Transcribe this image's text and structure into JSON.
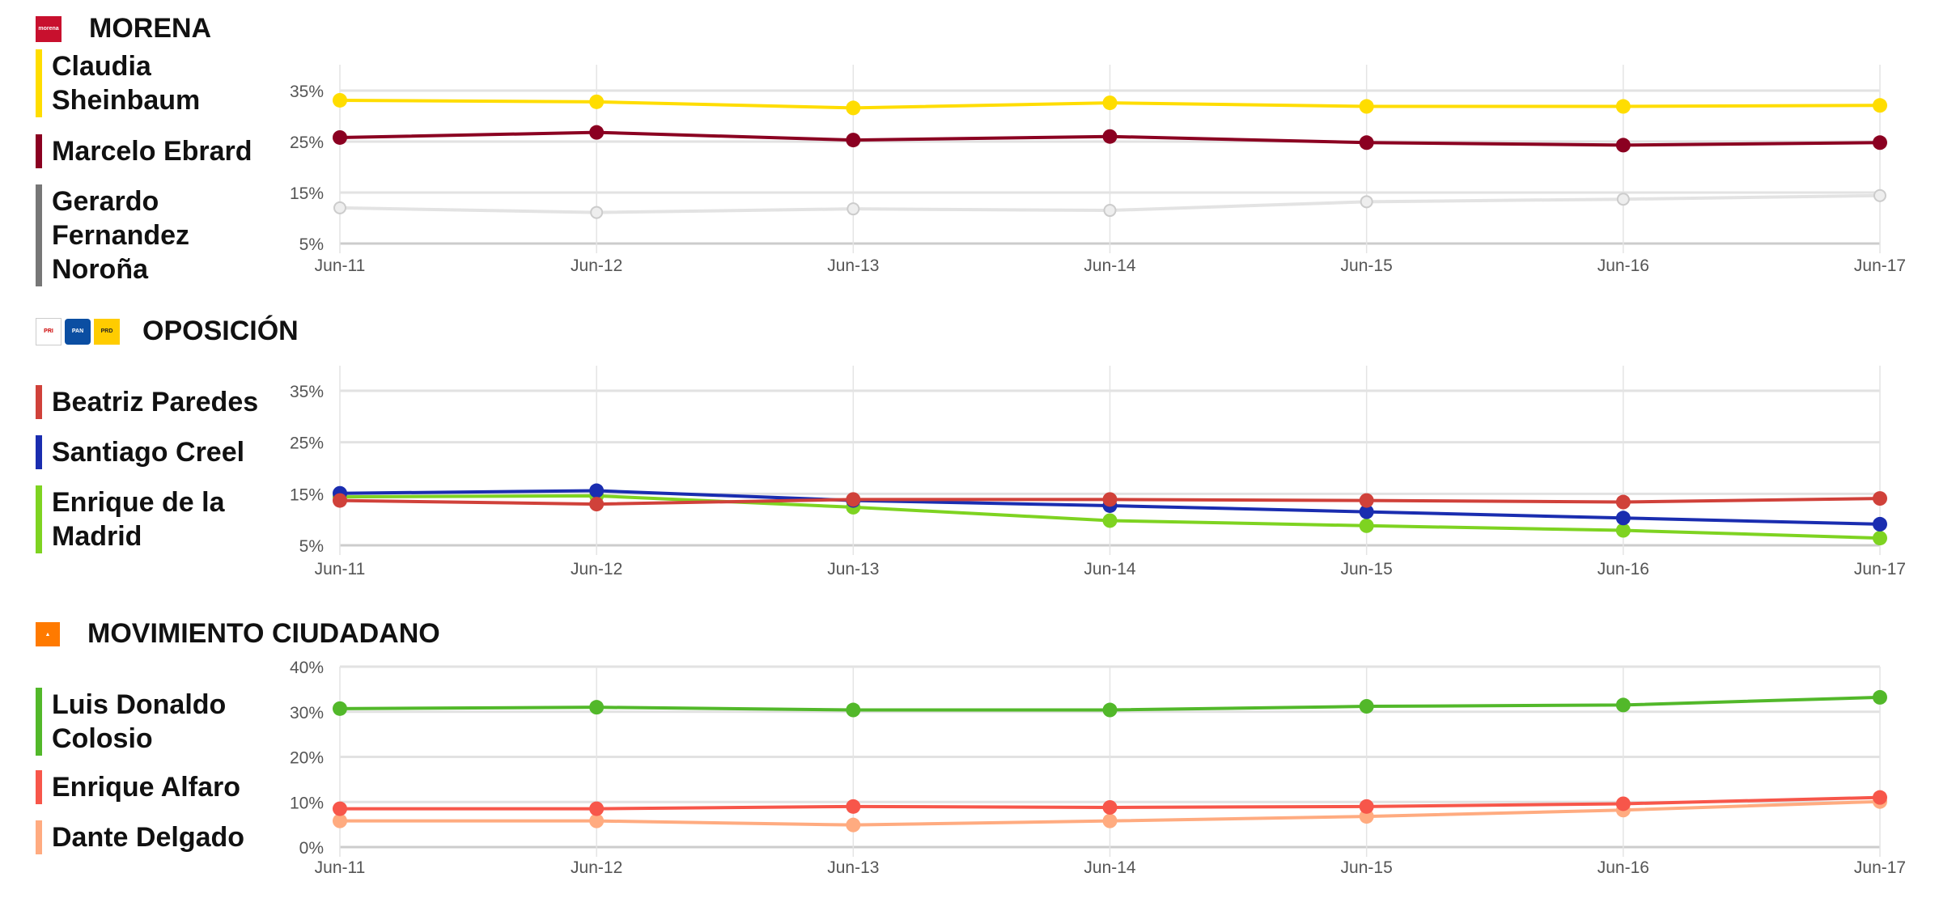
{
  "chart_data": [
    {
      "type": "line",
      "title": "MORENA",
      "logo": "morena-logo",
      "categories": [
        "Jun-11",
        "Jun-12",
        "Jun-13",
        "Jun-14",
        "Jun-15",
        "Jun-16",
        "Jun-17"
      ],
      "yticks": [
        "35%",
        "25%",
        "15%",
        "5%"
      ],
      "ytick_values": [
        35,
        25,
        15,
        5
      ],
      "ylim": [
        5,
        35
      ],
      "grid": true,
      "legend": "left",
      "series": [
        {
          "name": "Claudia Sheinbaum",
          "color": "#ffdd00",
          "values": [
            33.1,
            32.8,
            31.6,
            32.6,
            31.9,
            31.9,
            32.1
          ]
        },
        {
          "name": "Marcelo Ebrard",
          "color": "#8b0021",
          "values": [
            25.8,
            26.8,
            25.3,
            26.0,
            24.8,
            24.3,
            24.8
          ]
        },
        {
          "name": "Gerardo Fernandez Noroña",
          "color": "#777777",
          "line_color": "#e3e3e3",
          "values": [
            12.0,
            11.1,
            11.8,
            11.5,
            13.2,
            13.7,
            14.4
          ]
        }
      ]
    },
    {
      "type": "line",
      "title": "OPOSICIÓN",
      "logo": "pri-pan-prd-logos",
      "logo_labels": [
        "PRI",
        "PAN",
        "PRD"
      ],
      "categories": [
        "Jun-11",
        "Jun-12",
        "Jun-13",
        "Jun-14",
        "Jun-15",
        "Jun-16",
        "Jun-17"
      ],
      "yticks": [
        "35%",
        "25%",
        "15%",
        "5%"
      ],
      "ytick_values": [
        35,
        25,
        15,
        5
      ],
      "ylim": [
        5,
        35
      ],
      "grid": true,
      "legend": "left",
      "series": [
        {
          "name": "Beatriz Paredes",
          "color": "#d0413a",
          "values": [
            13.7,
            13.0,
            13.9,
            13.9,
            13.7,
            13.4,
            14.1
          ]
        },
        {
          "name": "Santiago Creel",
          "color": "#1a2db0",
          "values": [
            15.1,
            15.6,
            13.7,
            12.7,
            11.5,
            10.3,
            9.1
          ]
        },
        {
          "name": "Enrique de la Madrid",
          "color": "#7ed321",
          "values": [
            14.4,
            14.6,
            12.4,
            9.8,
            8.8,
            7.9,
            6.4
          ]
        }
      ]
    },
    {
      "type": "line",
      "title": "MOVIMIENTO CIUDADANO",
      "logo": "mc-logo",
      "categories": [
        "Jun-11",
        "Jun-12",
        "Jun-13",
        "Jun-14",
        "Jun-15",
        "Jun-16",
        "Jun-17"
      ],
      "yticks": [
        "40%",
        "30%",
        "20%",
        "10%",
        "0%"
      ],
      "ytick_values": [
        40,
        30,
        20,
        10,
        0
      ],
      "ylim": [
        0,
        40
      ],
      "grid": true,
      "legend": "left",
      "series": [
        {
          "name": "Luis Donaldo Colosio",
          "color": "#52b82a",
          "values": [
            30.7,
            31.0,
            30.4,
            30.4,
            31.2,
            31.5,
            33.2
          ]
        },
        {
          "name": "Enrique Alfaro",
          "color": "#f7564a",
          "values": [
            8.5,
            8.5,
            9.0,
            8.8,
            9.0,
            9.6,
            11.0
          ]
        },
        {
          "name": "Dante Delgado",
          "color": "#ffab80",
          "values": [
            5.8,
            5.8,
            4.9,
            5.8,
            6.8,
            8.2,
            10.1
          ]
        }
      ]
    }
  ]
}
